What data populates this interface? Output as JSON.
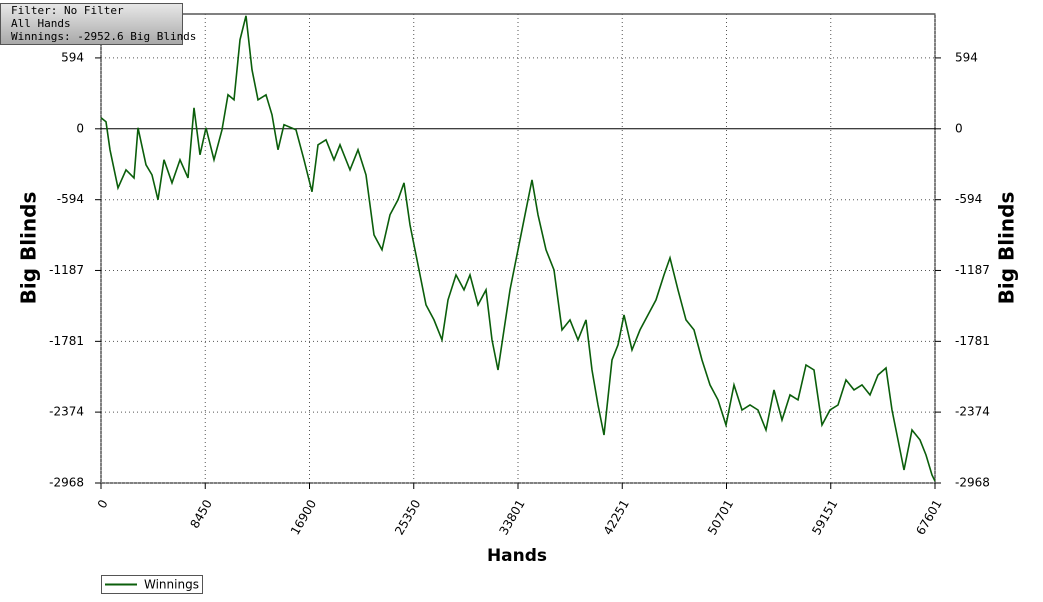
{
  "chart_data": {
    "type": "line",
    "annotations": [
      "Filter: No Filter",
      "All Hands",
      "Winnings: -2952.6 Big Blinds"
    ],
    "ylabel": "Big Blinds",
    "xlabel": "Hands",
    "xlim": [
      0,
      67601
    ],
    "ylim": [
      -2968,
      962
    ],
    "xticks": [
      0,
      8450,
      16900,
      25350,
      33801,
      42251,
      50701,
      59151,
      67601
    ],
    "yticks": [
      594,
      0,
      -594,
      -1187,
      -1781,
      -2374,
      -2968
    ],
    "grid": true,
    "legend": "bottom-left",
    "x": [
      0,
      405,
      730,
      1378,
      2026,
      2675,
      2999,
      3648,
      4134,
      4620,
      5107,
      5755,
      6404,
      7052,
      7539,
      8025,
      8511,
      9160,
      9808,
      10294,
      10781,
      11267,
      11754,
      12240,
      12726,
      13375,
      13861,
      14347,
      14834,
      15807,
      16455,
      17104,
      17590,
      18239,
      18887,
      19374,
      20184,
      20833,
      21481,
      22130,
      22778,
      23427,
      24075,
      24562,
      25048,
      25697,
      26345,
      26994,
      27642,
      28128,
      28777,
      29425,
      29912,
      30560,
      31209,
      31695,
      32181,
      32668,
      33154,
      33803,
      34451,
      34937,
      35424,
      36072,
      36721,
      37369,
      38018,
      38666,
      39315,
      39801,
      40287,
      40774,
      41422,
      41909,
      42395,
      43043,
      43692,
      44340,
      44989,
      45637,
      46123,
      46772,
      47420,
      48069,
      48717,
      49365,
      50014,
      50662,
      51311,
      51959,
      52607,
      53256,
      53904,
      54553,
      55201,
      55850,
      56498,
      57146,
      57795,
      58443,
      59092,
      59740,
      60389,
      61037,
      61686,
      62334,
      62982,
      63631,
      64117,
      64604,
      65090,
      65739,
      66387,
      66873,
      67360,
      67601
    ],
    "series": [
      {
        "name": "Winnings",
        "color": "#0b5e0b",
        "values": [
          92,
          59,
          -176,
          -495,
          -344,
          -411,
          8,
          -302,
          -386,
          -595,
          -260,
          -453,
          -260,
          -411,
          176,
          -218,
          8,
          -260,
          -8,
          285,
          243,
          746,
          947,
          495,
          243,
          285,
          117,
          -176,
          34,
          -8,
          -260,
          -528,
          -134,
          -92,
          -260,
          -134,
          -344,
          -176,
          -386,
          -889,
          -1014,
          -721,
          -595,
          -453,
          -805,
          -1140,
          -1476,
          -1601,
          -1769,
          -1434,
          -1224,
          -1350,
          -1224,
          -1476,
          -1350,
          -1769,
          -2021,
          -1685,
          -1350,
          -1014,
          -679,
          -428,
          -721,
          -1014,
          -1182,
          -1685,
          -1601,
          -1769,
          -1601,
          -2021,
          -2314,
          -2566,
          -1937,
          -1811,
          -1559,
          -1853,
          -1685,
          -1559,
          -1434,
          -1224,
          -1082,
          -1350,
          -1601,
          -1685,
          -1937,
          -2146,
          -2272,
          -2482,
          -2146,
          -2356,
          -2314,
          -2356,
          -2524,
          -2188,
          -2440,
          -2230,
          -2272,
          -1979,
          -2021,
          -2482,
          -2356,
          -2314,
          -2104,
          -2188,
          -2146,
          -2230,
          -2063,
          -2004,
          -2356,
          -2607,
          -2859,
          -2524,
          -2607,
          -2733,
          -2901,
          -2952.6
        ]
      }
    ]
  }
}
